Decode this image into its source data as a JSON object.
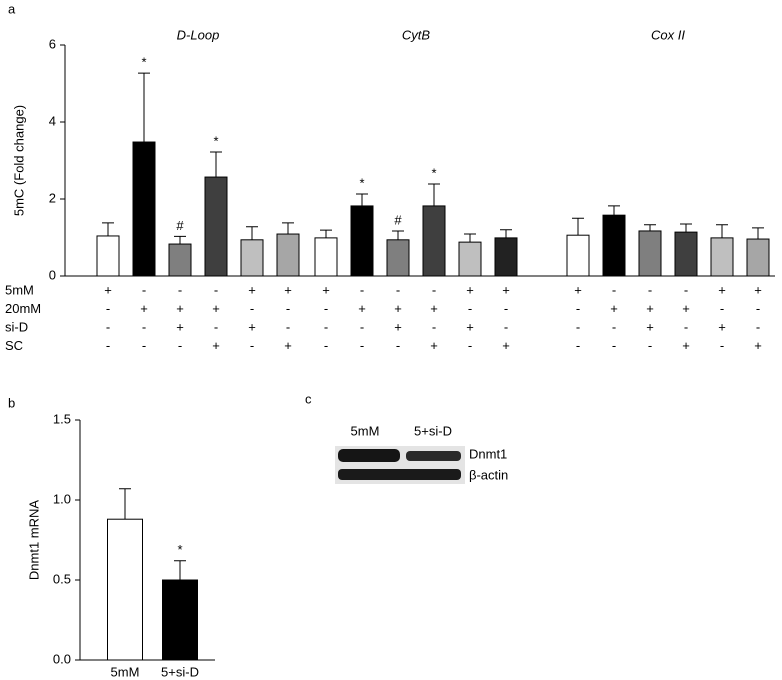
{
  "chart_data": [
    {
      "type": "bar",
      "panel": "a",
      "y_label": "5mC (Fold change)",
      "ylim": [
        0,
        6
      ],
      "yticks": [
        0,
        2,
        4,
        6
      ],
      "groups": [
        {
          "name": "D-Loop",
          "values": [
            1.04,
            3.48,
            0.83,
            2.57,
            0.94,
            1.09
          ],
          "errors": [
            0.34,
            1.79,
            0.2,
            0.65,
            0.34,
            0.29
          ],
          "colors": [
            "#ffffff",
            "#000000",
            "#7f7f7f",
            "#3f3f3f",
            "#bfbfbf",
            "#a6a6a6"
          ],
          "annotations": [
            null,
            "*",
            "#",
            "*",
            null,
            null
          ]
        },
        {
          "name": "CytB",
          "values": [
            0.99,
            1.82,
            0.94,
            1.82,
            0.88,
            0.99
          ],
          "errors": [
            0.2,
            0.31,
            0.23,
            0.57,
            0.21,
            0.21
          ],
          "colors": [
            "#ffffff",
            "#000000",
            "#7f7f7f",
            "#3f3f3f",
            "#bfbfbf",
            "#222222"
          ],
          "annotations": [
            null,
            "*",
            "#",
            "*",
            null,
            null
          ]
        },
        {
          "name": "Cox II",
          "values": [
            1.06,
            1.58,
            1.17,
            1.14,
            0.99,
            0.96
          ],
          "errors": [
            0.44,
            0.24,
            0.16,
            0.21,
            0.34,
            0.29
          ],
          "colors": [
            "#ffffff",
            "#000000",
            "#7f7f7f",
            "#3f3f3f",
            "#bfbfbf",
            "#a6a6a6"
          ],
          "annotations": [
            null,
            null,
            null,
            null,
            null,
            null
          ]
        }
      ],
      "treatments": [
        {
          "label": "5mM",
          "signs": [
            "+",
            "-",
            "-",
            "-",
            "+",
            "+"
          ]
        },
        {
          "label": "20mM",
          "signs": [
            "-",
            "+",
            "+",
            "+",
            "-",
            "-"
          ]
        },
        {
          "label": "si-D",
          "signs": [
            "-",
            "-",
            "+",
            "-",
            "+",
            "-"
          ]
        },
        {
          "label": "SC",
          "signs": [
            "-",
            "-",
            "-",
            "+",
            "-",
            "+"
          ]
        }
      ]
    },
    {
      "type": "bar",
      "panel": "b",
      "y_label": "Dnmt1 mRNA",
      "ylim": [
        0,
        1.5
      ],
      "yticks": [
        {
          "value": 0,
          "label": "0.0"
        },
        {
          "value": 0.5,
          "label": "0.5"
        },
        {
          "value": 1,
          "label": "1.0"
        },
        {
          "value": 1.5,
          "label": "1.5"
        }
      ],
      "categories": [
        "5mM",
        "5+si-D"
      ],
      "values": [
        0.88,
        0.5
      ],
      "errors": [
        0.19,
        0.12
      ],
      "colors": [
        "#ffffff",
        "#000000"
      ],
      "annotations": [
        null,
        "*"
      ]
    }
  ],
  "blot": {
    "panel": "c",
    "lanes": [
      "5mM",
      "5+si-D"
    ],
    "bands": [
      "Dnmt1",
      "β-actin"
    ]
  }
}
